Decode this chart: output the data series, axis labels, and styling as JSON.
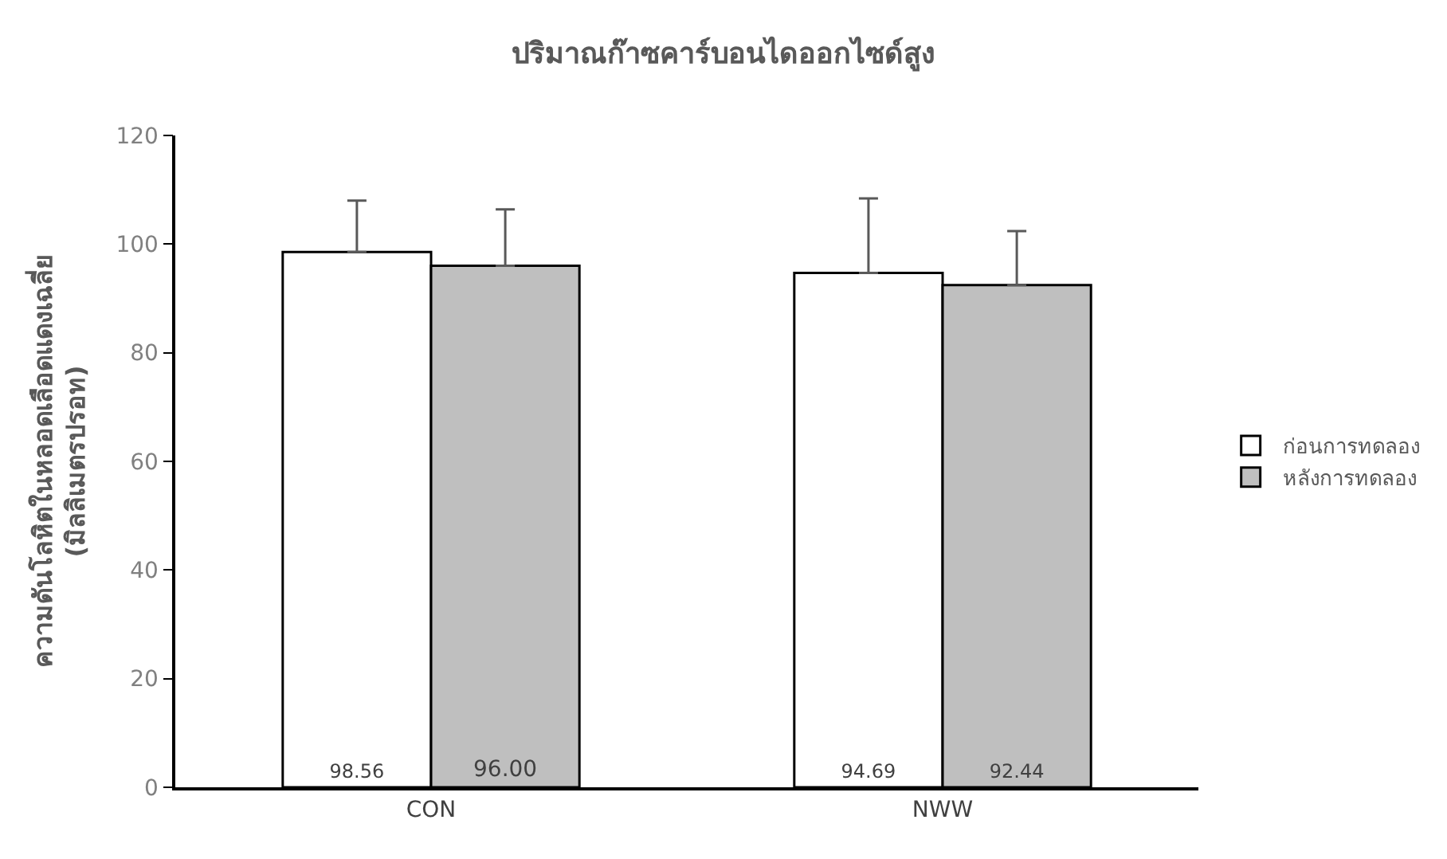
{
  "chart_data": {
    "type": "bar",
    "title": "ปริมาณก๊าซคาร์บอนไดออกไซด์สูง",
    "ylabel": "ความดันโลหิตในหลอดเลือดแดงเฉลี่ย\n(มิลลิเมตรปรอท)",
    "categories": [
      "CON",
      "NWW"
    ],
    "series": [
      {
        "name": "ก่อนการทดลอง",
        "color": "#ffffff",
        "values": [
          98.56,
          94.69
        ],
        "value_labels": [
          "98.56",
          "94.69"
        ],
        "errors": [
          [
            98.56,
            108.0
          ],
          [
            94.69,
            108.4
          ]
        ]
      },
      {
        "name": "หลังการทดลอง",
        "color": "#bfbfbf",
        "values": [
          96.0,
          92.44
        ],
        "value_labels": [
          "96.00",
          "92.44"
        ],
        "errors": [
          [
            96.0,
            106.4
          ],
          [
            92.44,
            102.4
          ]
        ]
      }
    ],
    "ylim": [
      0,
      120
    ],
    "yticks": [
      0,
      20,
      40,
      60,
      80,
      100,
      120
    ],
    "legend": "right"
  }
}
